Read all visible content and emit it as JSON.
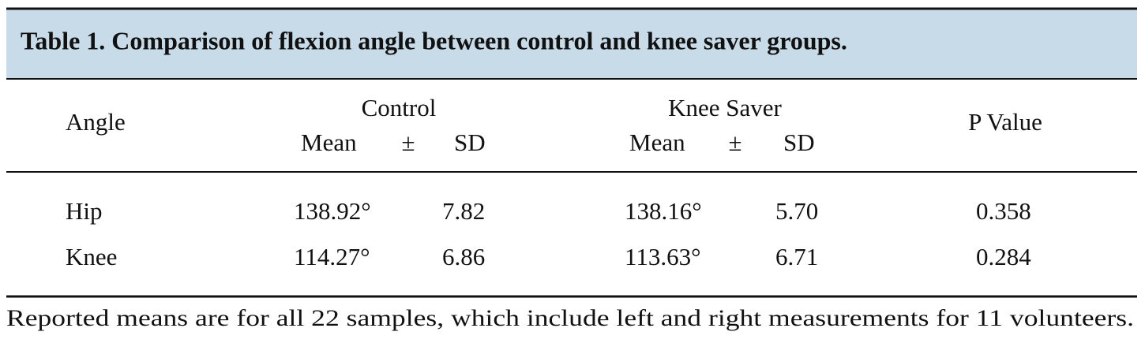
{
  "title": "Table 1.  Comparison of flexion angle between control and knee saver groups.",
  "header": {
    "angle": "Angle",
    "groups": [
      {
        "name": "Control",
        "subheaders": [
          "Mean",
          "±",
          "SD"
        ]
      },
      {
        "name": "Knee Saver",
        "subheaders": [
          "Mean",
          "±",
          "SD"
        ]
      }
    ],
    "p_value": "P Value"
  },
  "rows": [
    [
      "Hip",
      "138.92°",
      "7.82",
      "138.16°",
      "5.70",
      "0.358"
    ],
    [
      "Knee",
      "114.27°",
      "6.86",
      "113.63°",
      "6.71",
      "0.284"
    ]
  ],
  "footnote": "Reported means are for all 22 samples, which include left and right measurements for 11 volunteers."
}
